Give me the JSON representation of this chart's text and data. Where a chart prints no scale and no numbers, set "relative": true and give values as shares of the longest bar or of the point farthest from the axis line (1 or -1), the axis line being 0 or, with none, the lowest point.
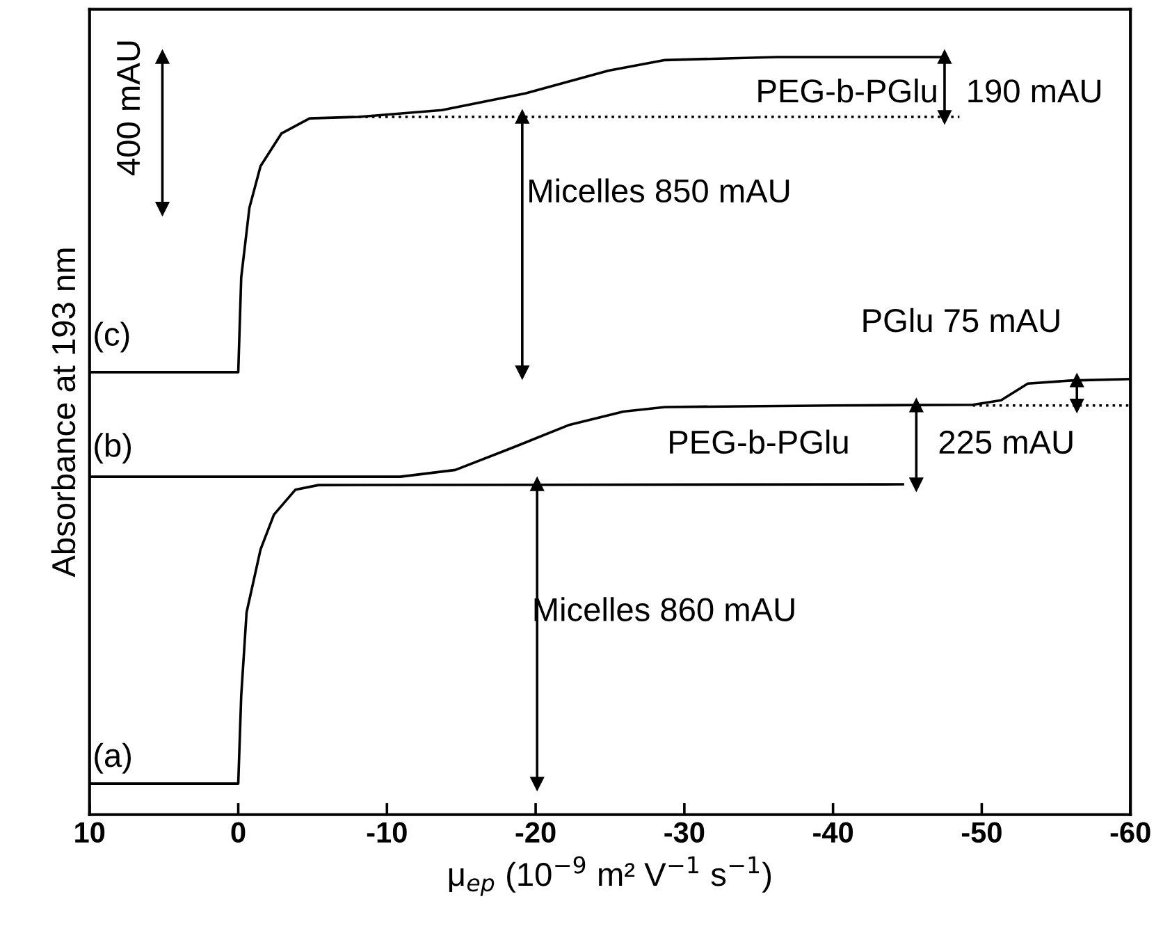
{
  "chart_data": {
    "type": "line",
    "relative": true,
    "xlabel": "μ$_{ep}$ (10$^{−9}$ m² V$^{−1}$ s$^{−1}$)",
    "ylabel": "Absorbance at 193 nm",
    "xlim": [
      10,
      -60
    ],
    "xticks": [
      10,
      0,
      -10,
      -20,
      -30,
      -40,
      -50,
      -60
    ],
    "tick_labels": "x",
    "grid": false,
    "series": [
      {
        "color": "#000000",
        "x": [
          10,
          0,
          -0.2,
          -0.56,
          -1.5,
          -2.4,
          -3.85,
          -5.4,
          -44.7
        ],
        "values": [
          0.041,
          0.041,
          0.157,
          0.267,
          0.35,
          0.396,
          0.429,
          0.435,
          0.436
        ]
      },
      {
        "color": "#000000",
        "x": [
          10,
          -10.9,
          -14.6,
          -18.4,
          -22.2,
          -25.9,
          -28.7,
          -40,
          -49.4,
          -51.3,
          -53.1,
          -56,
          -60
        ],
        "values": [
          0.446,
          0.446,
          0.455,
          0.484,
          0.514,
          0.532,
          0.538,
          0.54,
          0.541,
          0.547,
          0.569,
          0.573,
          0.575
        ]
      },
      {
        "color": "#000000",
        "x": [
          10,
          0,
          -0.2,
          -0.75,
          -1.5,
          -2.9,
          -4.8,
          -8.1,
          -13.7,
          -19.3,
          -24.9,
          -28.7,
          -36.2,
          -47.5
        ],
        "values": [
          0.584,
          0.584,
          0.709,
          0.801,
          0.856,
          0.899,
          0.919,
          0.921,
          0.93,
          0.952,
          0.982,
          0.996,
          1.0,
          1.0
        ]
      },
      {
        "color": "#000000",
        "line_style": "dotted",
        "x": [
          -8.1,
          -48.5
        ],
        "values": [
          0.921,
          0.921
        ]
      },
      {
        "color": "#000000",
        "line_style": "dotted",
        "x": [
          -49.4,
          -60
        ],
        "values": [
          0.54,
          0.54
        ]
      },
      {
        "color": "#000000",
        "marker": "triangle",
        "x": [
          -19.1,
          -19.1
        ],
        "values": [
          0.584,
          0.921
        ]
      },
      {
        "color": "#000000",
        "marker": "triangle",
        "x": [
          -47.5,
          -47.5
        ],
        "values": [
          0.921,
          1.0
        ]
      },
      {
        "color": "#000000",
        "marker": "triangle",
        "x": [
          -45.6,
          -45.6
        ],
        "values": [
          0.436,
          0.54
        ]
      },
      {
        "color": "#000000",
        "marker": "triangle",
        "x": [
          -56.4,
          -56.4
        ],
        "values": [
          0.54,
          0.573
        ]
      },
      {
        "color": "#000000",
        "marker": "triangle",
        "x": [
          -20.1,
          -20.1
        ],
        "values": [
          0.041,
          0.436
        ]
      },
      {
        "color": "#000000",
        "marker": "triangle",
        "x": [
          5.1,
          5.1
        ],
        "values": [
          0.8,
          1.0
        ]
      }
    ],
    "annotations": [
      "(a)",
      "(b)",
      "(c)",
      "Micelles 860 mAU",
      "Micelles 850 mAU",
      "PEG-b-PGlu",
      "190 mAU",
      "PEG-b-PGlu",
      "225 mAU",
      "PGlu 75 mAU",
      "400 mAU"
    ]
  }
}
